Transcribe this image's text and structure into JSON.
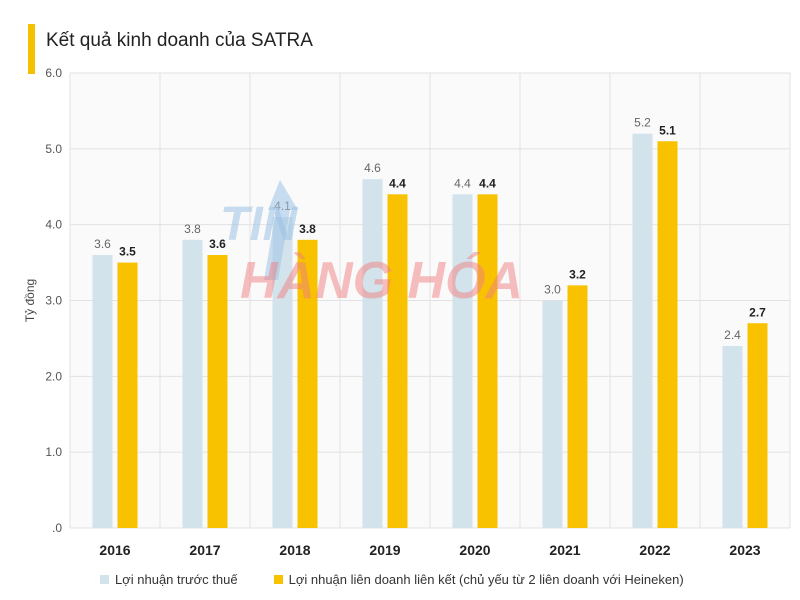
{
  "chart_data": {
    "type": "bar",
    "title": "Kết quả kinh doanh của SATRA",
    "ylabel": "Tỷ đồng",
    "xlabel": "",
    "ylim": [
      0,
      6
    ],
    "yticks": [
      ".0",
      "1.0",
      "2.0",
      "3.0",
      "4.0",
      "5.0",
      "6.0"
    ],
    "categories": [
      "2016",
      "2017",
      "2018",
      "2019",
      "2020",
      "2021",
      "2022",
      "2023"
    ],
    "series": [
      {
        "name": "Lợi nhuận trước thuế",
        "color": "#d3e3ec",
        "values": [
          3.6,
          3.8,
          4.1,
          4.6,
          4.4,
          3.0,
          5.2,
          2.4
        ],
        "labels": [
          "3.6",
          "3.8",
          "4.1",
          "4.6",
          "4.4",
          "3.0",
          "5.2",
          "2.4"
        ]
      },
      {
        "name": "Lợi nhuận liên doanh liên kết (chủ yếu từ 2 liên doanh với Heineken)",
        "color": "#f8c200",
        "values": [
          3.5,
          3.6,
          3.8,
          4.4,
          4.4,
          3.2,
          5.1,
          2.7
        ],
        "labels": [
          "3.5",
          "3.6",
          "3.8",
          "4.4",
          "4.4",
          "3.2",
          "5.1",
          "2.7"
        ]
      }
    ],
    "grid": true,
    "legend": "bottom"
  },
  "watermark": {
    "line1": "TIN",
    "line2": "HÀNG HÓA"
  }
}
